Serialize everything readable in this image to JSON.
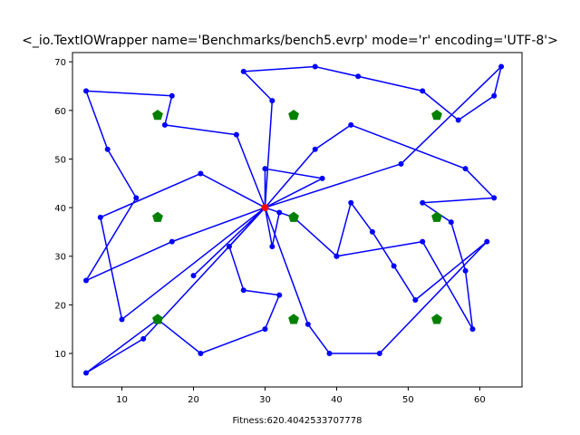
{
  "chart_data": {
    "type": "scatter",
    "title": "<_io.TextIOWrapper name='Benchmarks/bench5.evrp' mode='r' encoding='UTF-8'>",
    "xlabel": "Fitness:620.4042533707778",
    "ylabel": "",
    "xlim": [
      3.1,
      65.9
    ],
    "ylim": [
      3.1,
      71.9
    ],
    "xticks": [
      10,
      20,
      30,
      40,
      50,
      60
    ],
    "yticks": [
      10,
      20,
      30,
      40,
      50,
      60,
      70
    ],
    "grid": false,
    "legend": "none",
    "colors": {
      "route": "#0000ff",
      "stations": "#008000",
      "depot": "#ff0000",
      "axes": "#000000"
    },
    "route": [
      [
        30,
        40
      ],
      [
        30,
        48
      ],
      [
        38,
        46
      ],
      [
        30,
        40
      ],
      [
        31,
        62
      ],
      [
        27,
        68
      ],
      [
        37,
        69
      ],
      [
        43,
        67
      ],
      [
        52,
        64
      ],
      [
        57,
        58
      ],
      [
        62,
        63
      ],
      [
        63,
        69
      ],
      [
        49,
        49
      ],
      [
        30,
        40
      ],
      [
        26,
        55
      ],
      [
        16,
        57
      ],
      [
        17,
        63
      ],
      [
        5,
        64
      ],
      [
        8,
        52
      ],
      [
        12,
        42
      ],
      [
        5,
        25
      ],
      [
        17,
        33
      ],
      [
        30,
        40
      ],
      [
        21,
        47
      ],
      [
        7,
        38
      ],
      [
        10,
        17
      ],
      [
        30,
        40
      ],
      [
        32,
        39
      ],
      [
        31,
        32
      ],
      [
        30,
        40
      ],
      [
        34,
        38
      ],
      [
        40,
        30
      ],
      [
        42,
        41
      ],
      [
        45,
        35
      ],
      [
        48,
        28
      ],
      [
        51,
        21
      ],
      [
        61,
        33
      ],
      [
        46,
        10
      ],
      [
        39,
        10
      ],
      [
        36,
        16
      ],
      [
        30,
        40
      ],
      [
        25,
        32
      ],
      [
        27,
        23
      ],
      [
        32,
        22
      ],
      [
        30,
        15
      ],
      [
        21,
        10
      ],
      [
        15,
        17
      ],
      [
        5,
        6
      ],
      [
        13,
        13
      ],
      [
        30,
        40
      ],
      [
        20,
        26
      ],
      [
        30,
        40
      ],
      [
        37,
        52
      ],
      [
        42,
        57
      ],
      [
        58,
        48
      ],
      [
        62,
        42
      ],
      [
        52,
        41
      ],
      [
        56,
        37
      ],
      [
        58,
        27
      ],
      [
        59,
        15
      ],
      [
        52,
        33
      ],
      [
        40,
        30
      ]
    ],
    "charging_stations": [
      [
        15,
        59
      ],
      [
        34,
        59
      ],
      [
        54,
        59
      ],
      [
        15,
        38
      ],
      [
        34,
        38
      ],
      [
        54,
        38
      ],
      [
        15,
        17
      ],
      [
        34,
        17
      ],
      [
        54,
        17
      ]
    ],
    "depot": [
      30,
      40
    ]
  }
}
